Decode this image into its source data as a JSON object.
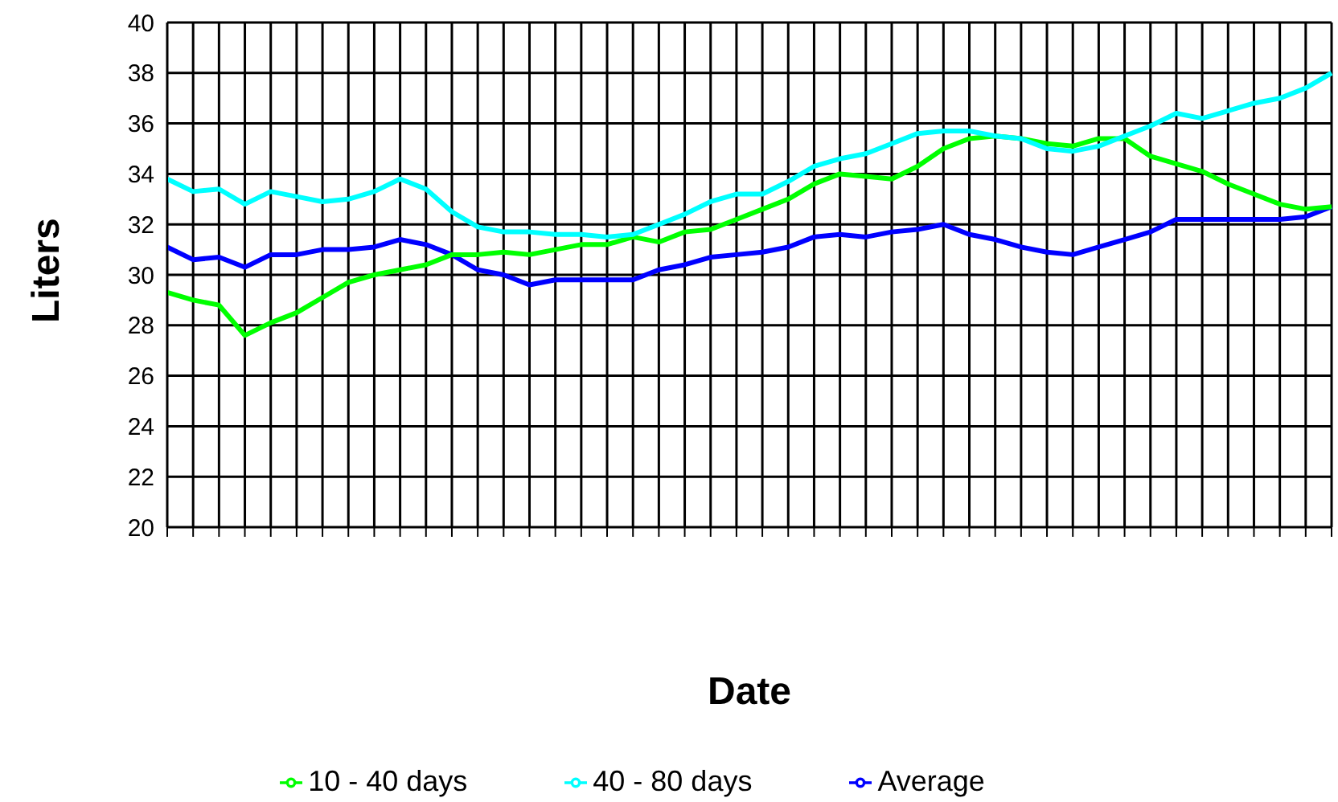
{
  "chart_data": {
    "type": "line",
    "xlabel": "Date",
    "ylabel": "Liters",
    "categories": [
      null,
      null,
      null,
      null,
      null,
      null,
      null,
      null,
      null,
      null,
      null,
      null,
      null,
      null,
      null,
      null,
      null,
      null,
      null,
      null,
      null,
      null,
      null,
      null,
      null,
      null,
      null,
      null,
      null,
      null,
      null,
      null,
      null,
      null,
      null,
      null,
      null,
      null,
      null,
      null,
      null,
      null,
      null,
      null,
      null,
      null
    ],
    "series": [
      {
        "name": "Average",
        "color": "#0000ff",
        "values": [
          31.1,
          30.6,
          30.7,
          30.3,
          30.8,
          30.8,
          31.0,
          31.0,
          31.1,
          31.4,
          31.2,
          30.8,
          30.2,
          30.0,
          29.6,
          29.8,
          29.8,
          29.8,
          29.8,
          30.2,
          30.4,
          30.7,
          30.8,
          30.9,
          31.1,
          31.5,
          31.6,
          31.5,
          31.7,
          31.8,
          32.0,
          31.6,
          31.4,
          31.1,
          30.9,
          30.8,
          31.1,
          31.4,
          31.7,
          32.2,
          32.2,
          32.2,
          32.2,
          32.2,
          32.3,
          32.7
        ]
      },
      {
        "name": "10 - 40 days",
        "color": "#00ff00",
        "values": [
          29.3,
          29.0,
          28.8,
          27.6,
          28.1,
          28.5,
          29.1,
          29.7,
          30.0,
          30.2,
          30.4,
          30.8,
          30.8,
          30.9,
          30.8,
          31.0,
          31.2,
          31.2,
          31.5,
          31.3,
          31.7,
          31.8,
          32.2,
          32.6,
          33.0,
          33.6,
          34.0,
          33.9,
          33.8,
          34.3,
          35.0,
          35.4,
          35.5,
          35.4,
          35.2,
          35.1,
          35.4,
          35.4,
          34.7,
          34.4,
          34.1,
          33.6,
          33.2,
          32.8,
          32.6,
          32.7
        ]
      },
      {
        "name": "40 - 80 days",
        "color": "#00ffff",
        "values": [
          33.8,
          33.3,
          33.4,
          32.8,
          33.3,
          33.1,
          32.9,
          33.0,
          33.3,
          33.8,
          33.4,
          32.5,
          31.9,
          31.7,
          31.7,
          31.6,
          31.6,
          31.5,
          31.6,
          32.0,
          32.4,
          32.9,
          33.2,
          33.2,
          33.7,
          34.3,
          34.6,
          34.8,
          35.2,
          35.6,
          35.7,
          35.7,
          35.5,
          35.4,
          35.0,
          34.9,
          35.1,
          35.5,
          35.9,
          36.4,
          36.2,
          36.5,
          36.8,
          37.0,
          37.4,
          38.0
        ]
      }
    ],
    "ylim": [
      20,
      40
    ],
    "yticks": [
      20,
      22,
      24,
      26,
      28,
      30,
      32,
      34,
      36,
      38,
      40
    ],
    "grid": true,
    "legend": "bottom",
    "marker": "none",
    "line_style": "solid"
  }
}
